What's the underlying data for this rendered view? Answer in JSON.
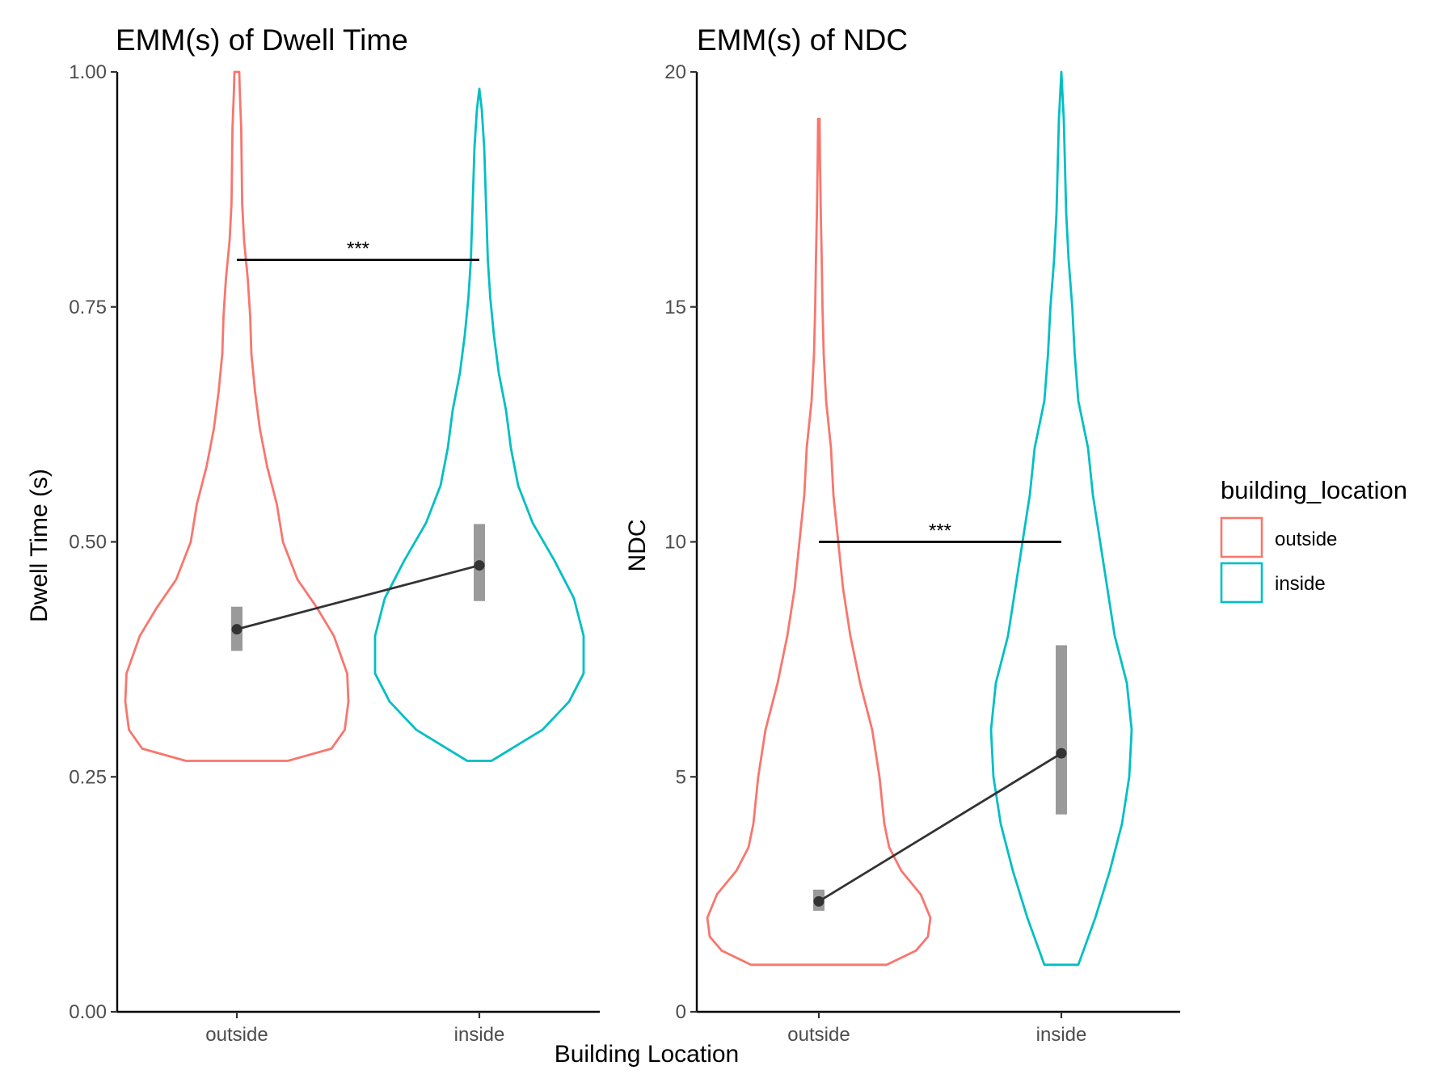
{
  "figure": {
    "shared_xlabel": "Building Location"
  },
  "legend": {
    "title": "building_location",
    "items": [
      {
        "label": "outside",
        "color": "#F8766D"
      },
      {
        "label": "inside",
        "color": "#00BFC4"
      }
    ]
  },
  "chart_data": [
    {
      "type": "violin",
      "title": "EMM(s) of Dwell Time",
      "xlabel": "",
      "ylabel": "Dwell Time (s)",
      "categories": [
        "outside",
        "inside"
      ],
      "ylim": [
        0,
        1
      ],
      "yticks": [
        0,
        0.25,
        0.5,
        0.75,
        1
      ],
      "ytick_labels": [
        "0.00",
        "0.25",
        "0.50",
        "0.75",
        "1.00"
      ],
      "violins": [
        {
          "category": "outside",
          "color": "#F8766D",
          "min": 0.267,
          "max": 1.0,
          "half_width_profile": [
            [
              0.267,
              0.21
            ],
            [
              0.28,
              0.39
            ],
            [
              0.3,
              0.445
            ],
            [
              0.33,
              0.46
            ],
            [
              0.36,
              0.455
            ],
            [
              0.4,
              0.4
            ],
            [
              0.43,
              0.33
            ],
            [
              0.46,
              0.25
            ],
            [
              0.5,
              0.19
            ],
            [
              0.54,
              0.165
            ],
            [
              0.58,
              0.125
            ],
            [
              0.62,
              0.095
            ],
            [
              0.66,
              0.075
            ],
            [
              0.7,
              0.06
            ],
            [
              0.74,
              0.055
            ],
            [
              0.78,
              0.045
            ],
            [
              0.82,
              0.03
            ],
            [
              0.86,
              0.022
            ],
            [
              0.9,
              0.02
            ],
            [
              0.94,
              0.018
            ],
            [
              0.98,
              0.012
            ],
            [
              1.0,
              0.01
            ]
          ],
          "emm": 0.407,
          "ci": [
            0.384,
            0.431
          ]
        },
        {
          "category": "inside",
          "color": "#00BFC4",
          "min": 0.267,
          "max": 0.982,
          "half_width_profile": [
            [
              0.267,
              0.05
            ],
            [
              0.3,
              0.26
            ],
            [
              0.33,
              0.37
            ],
            [
              0.36,
              0.43
            ],
            [
              0.4,
              0.43
            ],
            [
              0.44,
              0.39
            ],
            [
              0.48,
              0.31
            ],
            [
              0.52,
              0.22
            ],
            [
              0.56,
              0.16
            ],
            [
              0.6,
              0.13
            ],
            [
              0.64,
              0.11
            ],
            [
              0.68,
              0.08
            ],
            [
              0.72,
              0.06
            ],
            [
              0.76,
              0.045
            ],
            [
              0.8,
              0.035
            ],
            [
              0.84,
              0.03
            ],
            [
              0.88,
              0.025
            ],
            [
              0.92,
              0.02
            ],
            [
              0.96,
              0.01
            ],
            [
              0.982,
              0.0
            ]
          ],
          "emm": 0.475,
          "ci": [
            0.437,
            0.519
          ]
        }
      ],
      "significance": {
        "label": "***",
        "y": 0.8,
        "from": "outside",
        "to": "inside"
      }
    },
    {
      "type": "violin",
      "title": "EMM(s) of NDC",
      "xlabel": "",
      "ylabel": "NDC",
      "categories": [
        "outside",
        "inside"
      ],
      "ylim": [
        0,
        20
      ],
      "yticks": [
        0,
        5,
        10,
        15,
        20
      ],
      "ytick_labels": [
        "0",
        "5",
        "10",
        "15",
        "20"
      ],
      "violins": [
        {
          "category": "outside",
          "color": "#F8766D",
          "min": 1.0,
          "max": 19.0,
          "half_width_profile": [
            [
              1.0,
              0.28
            ],
            [
              1.3,
              0.4
            ],
            [
              1.6,
              0.45
            ],
            [
              2.0,
              0.46
            ],
            [
              2.5,
              0.42
            ],
            [
              3.0,
              0.34
            ],
            [
              3.5,
              0.29
            ],
            [
              4.0,
              0.27
            ],
            [
              5.0,
              0.25
            ],
            [
              6.0,
              0.22
            ],
            [
              7.0,
              0.17
            ],
            [
              8.0,
              0.13
            ],
            [
              9.0,
              0.1
            ],
            [
              10.0,
              0.08
            ],
            [
              11.0,
              0.06
            ],
            [
              12.0,
              0.05
            ],
            [
              13.0,
              0.03
            ],
            [
              14.0,
              0.02
            ],
            [
              15.0,
              0.015
            ],
            [
              16.0,
              0.012
            ],
            [
              17.0,
              0.008
            ],
            [
              18.0,
              0.005
            ],
            [
              19.0,
              0.003
            ]
          ],
          "emm": 2.35,
          "ci": [
            2.15,
            2.6
          ]
        },
        {
          "category": "inside",
          "color": "#00BFC4",
          "min": 1.0,
          "max": 20.0,
          "half_width_profile": [
            [
              1.0,
              0.07
            ],
            [
              2.0,
              0.14
            ],
            [
              3.0,
              0.2
            ],
            [
              4.0,
              0.25
            ],
            [
              5.0,
              0.28
            ],
            [
              6.0,
              0.29
            ],
            [
              7.0,
              0.27
            ],
            [
              8.0,
              0.22
            ],
            [
              9.0,
              0.19
            ],
            [
              10.0,
              0.16
            ],
            [
              11.0,
              0.13
            ],
            [
              12.0,
              0.11
            ],
            [
              13.0,
              0.07
            ],
            [
              14.0,
              0.055
            ],
            [
              15.0,
              0.045
            ],
            [
              16.0,
              0.03
            ],
            [
              17.0,
              0.02
            ],
            [
              18.0,
              0.015
            ],
            [
              19.0,
              0.01
            ],
            [
              20.0,
              0.0
            ]
          ],
          "emm": 5.5,
          "ci": [
            4.2,
            7.8
          ]
        }
      ],
      "significance": {
        "label": "***",
        "y": 10,
        "from": "outside",
        "to": "inside"
      }
    }
  ]
}
